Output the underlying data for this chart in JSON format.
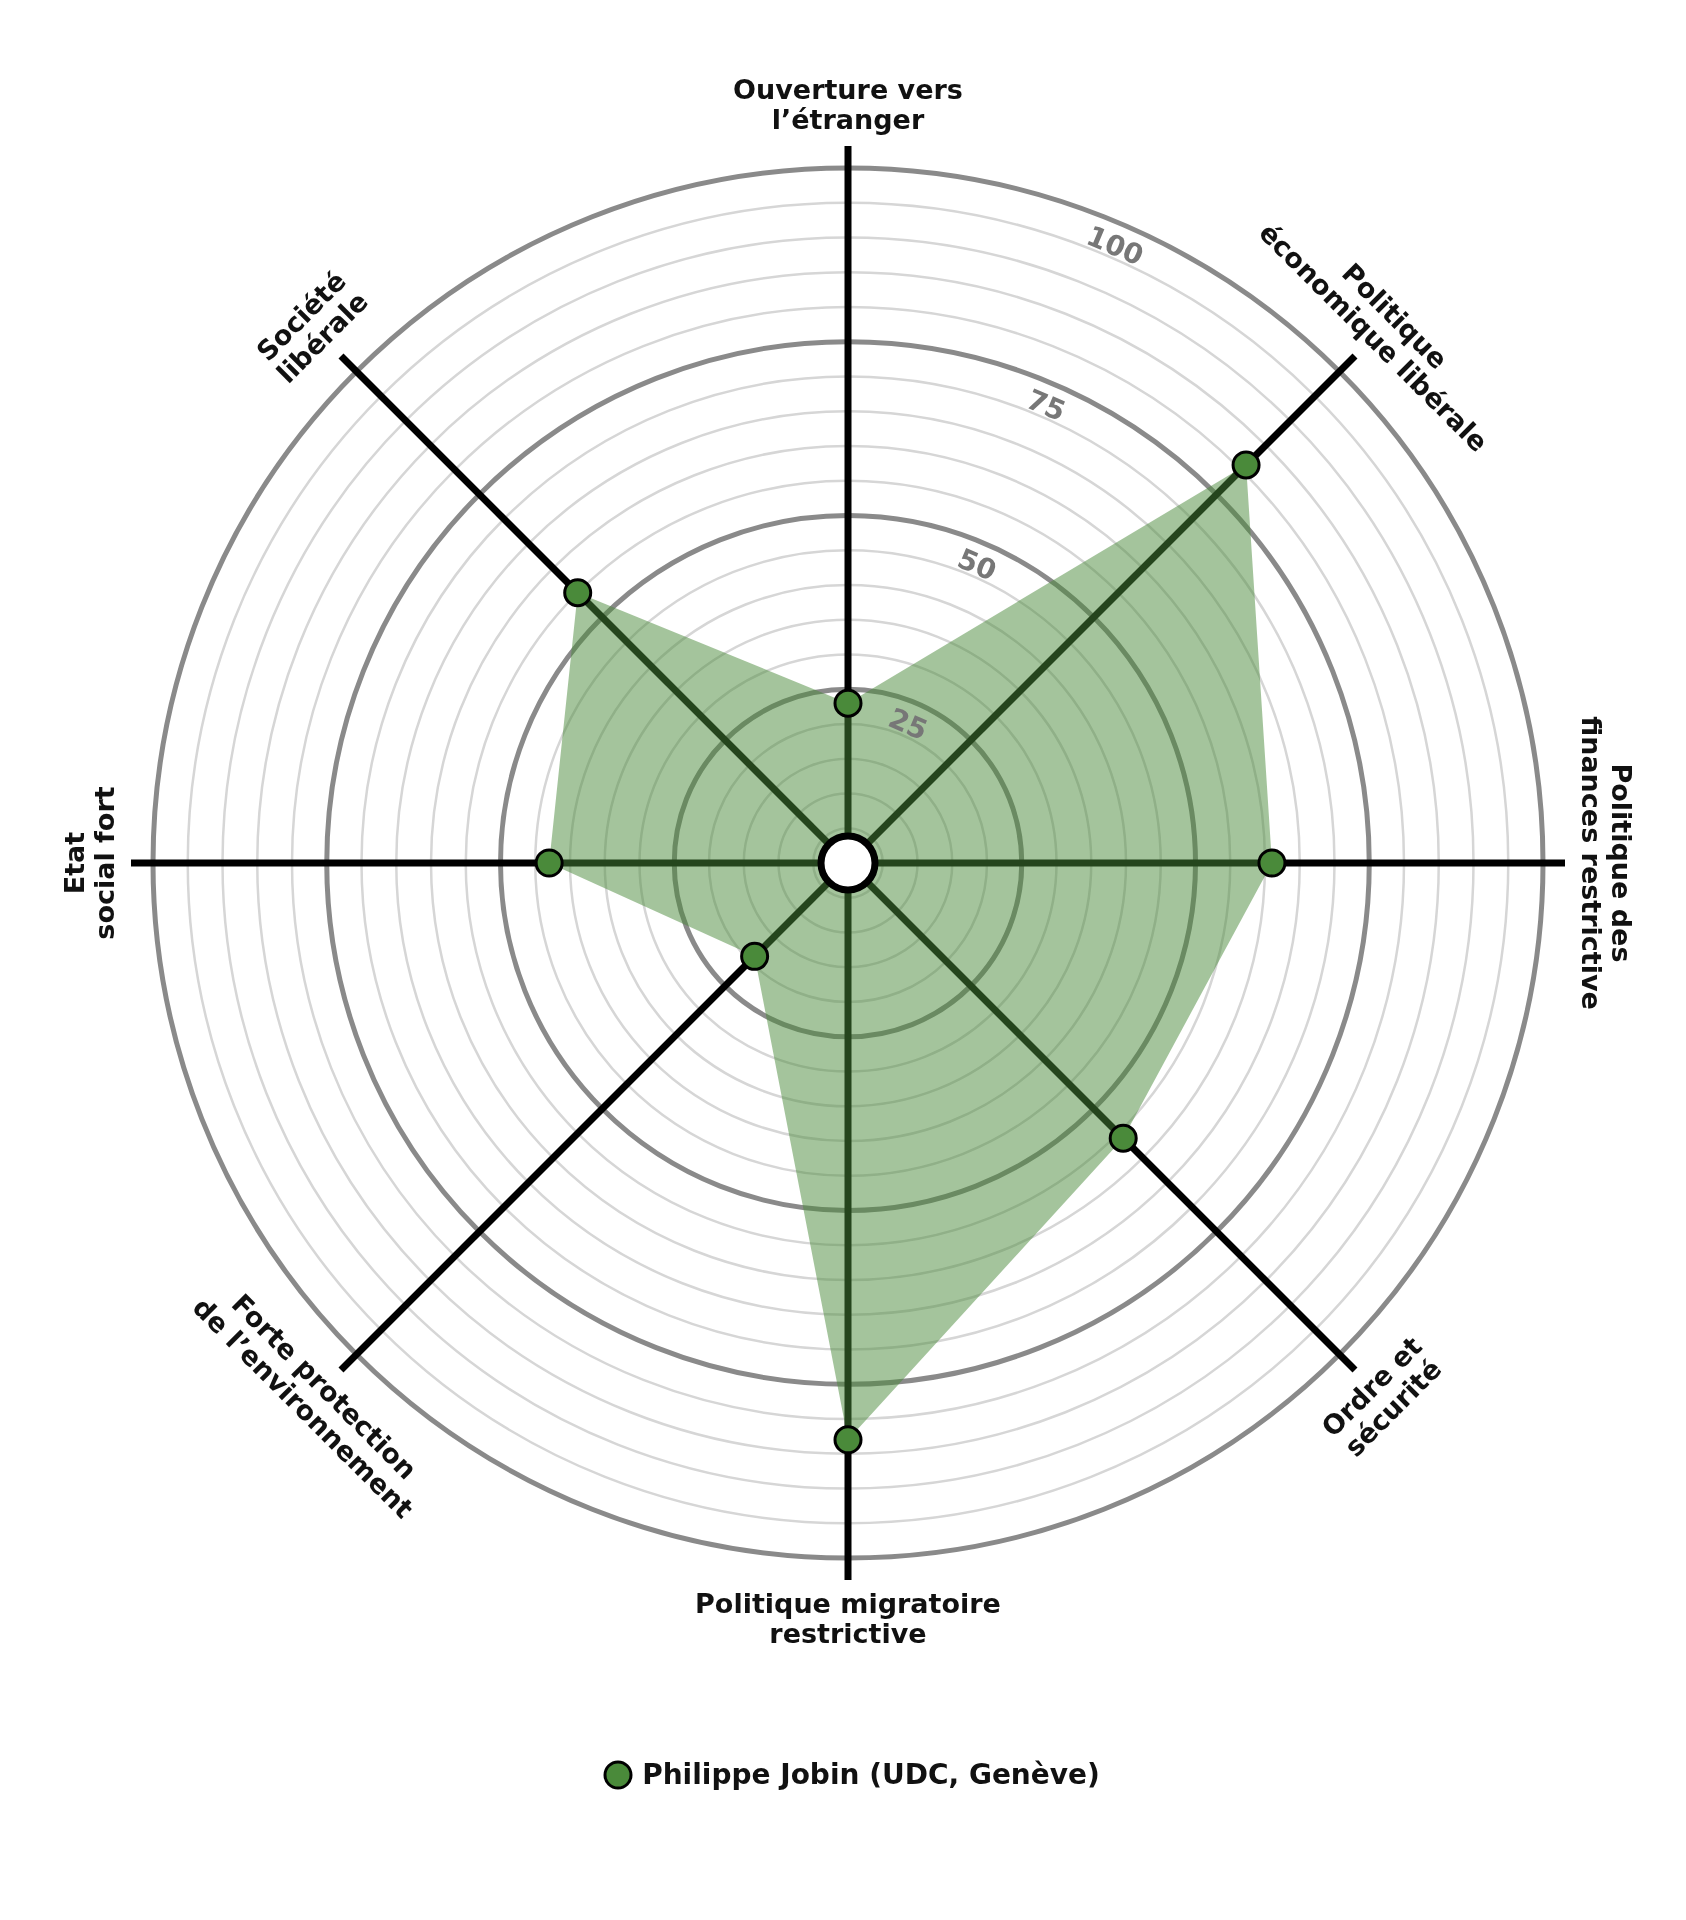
{
  "chart_data": {
    "type": "radar",
    "categories": [
      "Ouverture vers l’étranger",
      "Politique économique libérale",
      "Politique des finances restrictive",
      "Ordre et sécurité",
      "Politique migratoire restrictive",
      "Forte protection de l’environnement",
      "Etat social fort",
      "Société libérale"
    ],
    "series": [
      {
        "name": "Philippe Jobin (UDC, Genève)",
        "color": "#4a8a3a",
        "values": [
          23,
          81,
          61,
          56,
          83,
          19,
          43,
          55
        ]
      }
    ],
    "ylim": [
      0,
      100
    ],
    "yticks": [
      25,
      50,
      75,
      100
    ],
    "grid": true,
    "legend": "bottom",
    "marker": "circle"
  }
}
